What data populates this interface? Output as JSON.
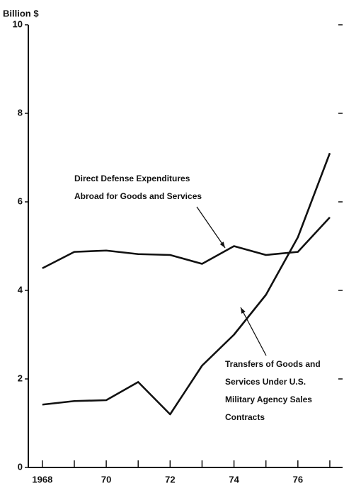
{
  "chart_data": {
    "type": "line",
    "y_label": "Billion $",
    "x": [
      1968,
      1969,
      1970,
      1971,
      1972,
      1973,
      1974,
      1975,
      1976,
      1977
    ],
    "series": [
      {
        "name": "Direct Defense Expenditures Abroad for Goods and Services",
        "color": "#111111",
        "values": [
          4.5,
          4.87,
          4.9,
          4.82,
          4.8,
          4.6,
          5.0,
          4.8,
          4.87,
          5.65
        ]
      },
      {
        "name": "Transfers of Goods and Services Under U.S. Military Agency Sales Contracts",
        "color": "#111111",
        "values": [
          1.42,
          1.5,
          1.52,
          1.93,
          1.2,
          2.3,
          3.0,
          3.9,
          5.2,
          7.1
        ]
      }
    ],
    "annotations": [
      {
        "lines": [
          "Direct Defense Expenditures",
          "Abroad for Goods and Services"
        ]
      },
      {
        "lines": [
          "Transfers of Goods and",
          "Services Under U.S.",
          "Military Agency Sales",
          "Contracts"
        ]
      }
    ],
    "xlim": [
      1967.56,
      1977.4
    ],
    "ylim": [
      0,
      10
    ],
    "xticks": [
      {
        "value": 1968,
        "label": "1968"
      },
      {
        "value": 1970,
        "label": "70"
      },
      {
        "value": 1972,
        "label": "72"
      },
      {
        "value": 1974,
        "label": "74"
      },
      {
        "value": 1976,
        "label": "76"
      }
    ],
    "xminorticks": [
      1969,
      1971,
      1973,
      1975,
      1977
    ],
    "yticks": [
      0,
      2,
      4,
      6,
      8,
      10
    ],
    "grid": false
  }
}
